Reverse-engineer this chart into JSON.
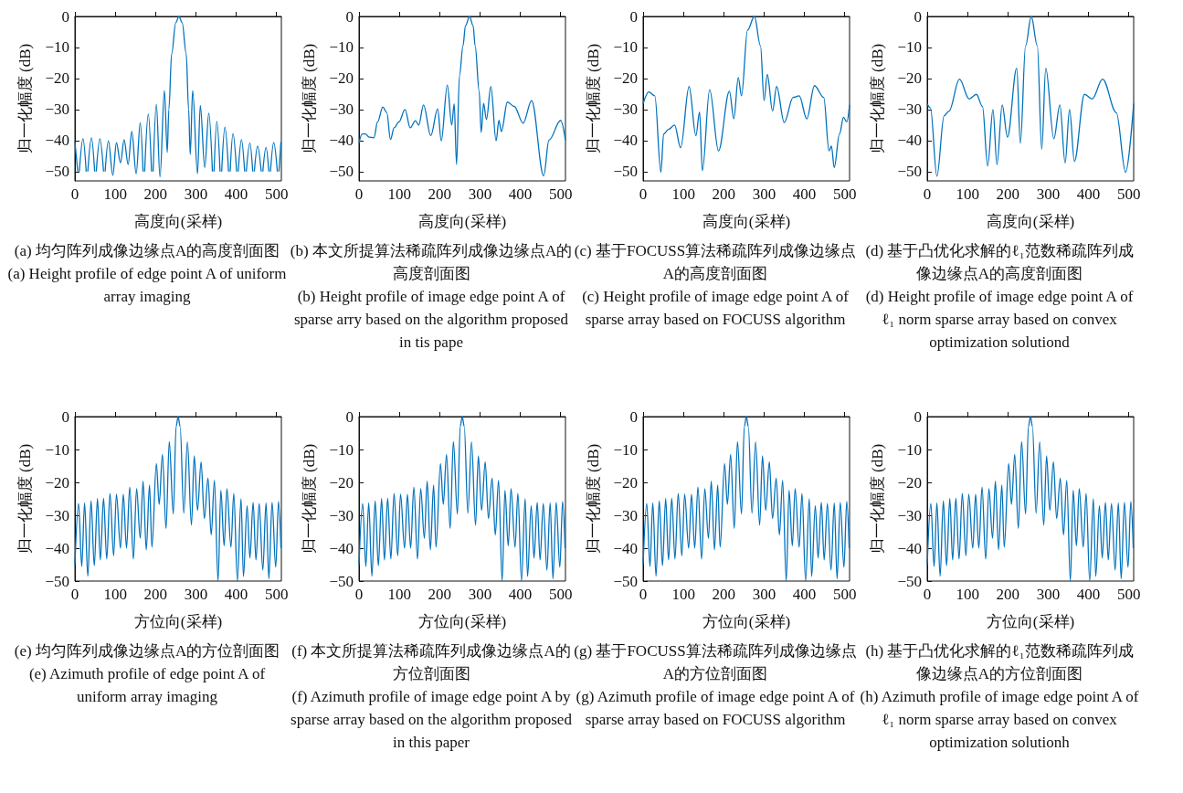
{
  "chart_data": [
    {
      "type": "line",
      "xlabel": "高度向(采样)",
      "ylabel": "归一化幅度 (dB)",
      "xlim": [
        0,
        512
      ],
      "xticks": [
        0,
        100,
        200,
        300,
        400,
        500
      ],
      "ylim": [
        -53,
        0
      ],
      "yticks": [
        0,
        -10,
        -20,
        -30,
        -40,
        -50
      ],
      "marker": "none",
      "annotations": [
        "(a) 均匀阵列成像边缘点A的高度剖面图",
        "(a) Height profile of edge point A of uniform array imaging"
      ],
      "series": [
        {
          "color": "#0072bd",
          "x": [
            0,
            7,
            9,
            11,
            20,
            28,
            30,
            32,
            41,
            49,
            51,
            53,
            62,
            71,
            73,
            75,
            83,
            94,
            103,
            113,
            122,
            132,
            141,
            152,
            162,
            169,
            171,
            173,
            182,
            190,
            192,
            194,
            202,
            211,
            222,
            229,
            233,
            240,
            250,
            258,
            266,
            276,
            282,
            286,
            292,
            304,
            311,
            322,
            332,
            341,
            343,
            345,
            352,
            360,
            362,
            364,
            372,
            381,
            383,
            385,
            392,
            401,
            403,
            405,
            413,
            421,
            423,
            425,
            434,
            441,
            443,
            445,
            453,
            462,
            464,
            466,
            474,
            481,
            483,
            485,
            493,
            502,
            504,
            506,
            511
          ],
          "values": [
            -40.4,
            -50,
            null,
            -50,
            -39.4,
            -50,
            null,
            -50,
            -39.1,
            -50,
            null,
            -50,
            -39.4,
            -50,
            null,
            -50,
            -40.1,
            -51.2,
            -40.7,
            -47.2,
            -39.7,
            -47.7,
            -37.1,
            -50.7,
            -34.3,
            -50,
            null,
            -50,
            -31.5,
            -50,
            null,
            -50,
            -28.3,
            -51.7,
            -23.9,
            -43.8,
            -30,
            -12,
            -2,
            0,
            -2,
            -12,
            -30,
            -44.5,
            -23.9,
            -50.7,
            -28.7,
            -48.7,
            -31.2,
            -50,
            null,
            -50,
            -33.8,
            -50,
            null,
            -50,
            -35.7,
            -50,
            null,
            -50,
            -37.7,
            -50,
            null,
            -50,
            -39.7,
            -50,
            null,
            -50,
            -40.8,
            -50,
            null,
            -50,
            -41.8,
            -50,
            null,
            -50,
            -42.2,
            -50,
            null,
            -50,
            -40.6,
            -50,
            null,
            -50,
            -40.4
          ]
        }
      ]
    },
    {
      "type": "line",
      "xlabel": "高度向(采样)",
      "ylabel": "归一化幅度 (dB)",
      "xlim": [
        0,
        512
      ],
      "xticks": [
        0,
        100,
        200,
        300,
        400,
        500
      ],
      "ylim": [
        -53,
        0
      ],
      "yticks": [
        0,
        -10,
        -20,
        -30,
        -40,
        -50
      ],
      "marker": "none",
      "annotations": [
        "(b) 本文所提算法稀疏阵列成像边缘点A的高度剖面图",
        "(b) Height profile of image edge point A of sparse arry based on the algorithm proposed in tis pape"
      ],
      "series": [
        {
          "color": "#0072bd",
          "x": [
            0,
            8,
            16,
            25,
            37,
            46,
            59,
            69,
            78,
            87,
            99,
            114,
            127,
            140,
            148,
            160,
            178,
            195,
            204,
            219,
            230,
            236,
            242,
            249,
            258,
            264,
            274,
            283,
            288,
            298,
            303,
            309,
            316,
            327,
            340,
            347,
            353,
            368,
            385,
            407,
            428,
            458,
            471,
            500,
            512
          ],
          "values": [
            -40.8,
            -37.9,
            -37.9,
            -38.9,
            -39.1,
            -34,
            -29.2,
            -31,
            -39.7,
            -35.9,
            -34,
            -30,
            -35.9,
            -33.6,
            -35,
            -28.5,
            -38.4,
            -29.8,
            -40.1,
            -22.1,
            -35,
            -28.2,
            -47.7,
            -19.2,
            -9.4,
            -3,
            0,
            -3,
            -9.4,
            -24.1,
            -37.4,
            -28,
            -33.2,
            -22.6,
            -40.1,
            -33.5,
            -37.1,
            -27.6,
            -29,
            -34.4,
            -27.1,
            -51.4,
            -39.9,
            -33.5,
            -39.9
          ]
        }
      ]
    },
    {
      "type": "line",
      "xlabel": "高度向(采样)",
      "ylabel": "归一化幅度 (dB)",
      "xlim": [
        0,
        512
      ],
      "xticks": [
        0,
        100,
        200,
        300,
        400,
        500
      ],
      "ylim": [
        -53,
        0
      ],
      "yticks": [
        0,
        -10,
        -20,
        -30,
        -40,
        -50
      ],
      "marker": "none",
      "annotations": [
        "(c) 基于FOCUSS算法稀疏阵列成像边缘点A的高度剖面图",
        "(c) Height profile of image edge point A of sparse array based on FOCUSS algorithm"
      ],
      "series": [
        {
          "color": "#0072bd",
          "x": [
            0,
            14,
            29,
            44,
            51,
            63,
            78,
            93,
            114,
            131,
            140,
            147,
            165,
            187,
            214,
            225,
            236,
            244,
            259,
            276,
            291,
            300,
            308,
            321,
            331,
            350,
            372,
            387,
            406,
            425,
            448,
            461,
            467,
            474,
            487,
            497,
            505,
            512
          ],
          "values": [
            -28.1,
            -24.3,
            -25.6,
            -50.2,
            -37.9,
            -36.4,
            -35,
            -42.3,
            -22.6,
            -38.4,
            -30.8,
            -49.7,
            -23.6,
            -43.3,
            -24.1,
            -33,
            -19.7,
            -25.6,
            -4.4,
            0,
            -9.4,
            -27.1,
            -18.7,
            -30.5,
            -22.6,
            -34.2,
            -26.1,
            -25.6,
            -33,
            -22.3,
            -26.1,
            -43.3,
            -41.8,
            -48.7,
            -37.9,
            -32.5,
            -34,
            -28.5
          ]
        }
      ]
    },
    {
      "type": "line",
      "xlabel": "高度向(采样)",
      "ylabel": "归一化幅度 (dB)",
      "xlim": [
        0,
        512
      ],
      "xticks": [
        0,
        100,
        200,
        300,
        400,
        500
      ],
      "ylim": [
        -53,
        0
      ],
      "yticks": [
        0,
        -10,
        -20,
        -30,
        -40,
        -50
      ],
      "marker": "none",
      "annotations": [
        "(d) 基于凸优化求解的ℓ₁范数稀疏阵列成像边缘点A的高度剖面图",
        "(d) Height profile of image edge point A of ℓ₁ norm sparse array based on convex optimization solutiond"
      ],
      "series": [
        {
          "color": "#0072bd",
          "x": [
            0,
            8,
            24,
            42,
            54,
            80,
            104,
            122,
            137,
            150,
            163,
            173,
            186,
            199,
            222,
            231,
            244,
            258,
            273,
            284,
            294,
            314,
            329,
            342,
            353,
            365,
            390,
            409,
            435,
            469,
            492,
            512
          ],
          "values": [
            -28.1,
            -29.5,
            -51.5,
            -32,
            -30.5,
            -20.2,
            -26.6,
            -25.1,
            -29,
            -48.2,
            -30,
            -47.7,
            -28.5,
            -38.9,
            -16.7,
            -40.9,
            -9.4,
            0,
            -9.4,
            -42.8,
            -16.7,
            -39.4,
            -28.5,
            -47.2,
            -30,
            -46.7,
            -25.1,
            -26.6,
            -20.2,
            -31,
            -50.2,
            -28.1
          ]
        }
      ]
    },
    {
      "type": "line",
      "xlabel": "方位向(采样)",
      "ylabel": "归一化幅度 (dB)",
      "xlim": [
        0,
        512
      ],
      "xticks": [
        0,
        100,
        200,
        300,
        400,
        500
      ],
      "ylim": [
        -50,
        0
      ],
      "yticks": [
        0,
        -10,
        -20,
        -30,
        -40,
        -50
      ],
      "marker": "none",
      "annotations": [
        "(e) 均匀阵列成像边缘点A的方位剖面图",
        "(e) Azimuth profile of edge point A of uniform array imaging"
      ],
      "series": [
        {
          "color": "#0072bd",
          "x": [
            0,
            9,
            17,
            24,
            32,
            40,
            48,
            56,
            63,
            71,
            79,
            87,
            96,
            103,
            113,
            120,
            128,
            136,
            145,
            153,
            162,
            169,
            177,
            185,
            191,
            202,
            209,
            217,
            226,
            234,
            244,
            251,
            256,
            261,
            270,
            279,
            289,
            296,
            304,
            313,
            321,
            330,
            338,
            346,
            355,
            362,
            370,
            377,
            387,
            394,
            403,
            412,
            418,
            427,
            434,
            442,
            449,
            457,
            466,
            474,
            481,
            489,
            498,
            505,
            511
          ],
          "values": [
            -45,
            -26.4,
            -45.6,
            -26.2,
            -48.5,
            -25.6,
            -45.3,
            -24.9,
            -43.6,
            -24.8,
            -43.3,
            -23.4,
            -42.3,
            -23.6,
            -40,
            -23.6,
            -40,
            -21.4,
            -43.3,
            -21.9,
            -37,
            -19.6,
            -40.5,
            -20.8,
            -39.7,
            -14.3,
            -26.7,
            -11.5,
            -34,
            -7.6,
            -29.6,
            -3,
            0,
            -3,
            -29.4,
            -7.7,
            -33,
            -11.9,
            -28.5,
            -13.8,
            -31,
            -18.7,
            -36,
            -19.4,
            -50,
            -22.4,
            -39.3,
            -21.9,
            -39.7,
            -23.4,
            -50,
            -25,
            -48.6,
            -27.1,
            -43,
            -26.1,
            -43.6,
            -26.4,
            -46.7,
            -26.2,
            -49.3,
            -26.1,
            -45.8,
            -25.8,
            -40
          ]
        }
      ]
    },
    {
      "type": "line",
      "xlabel": "方位向(采样)",
      "ylabel": "归一化幅度 (dB)",
      "xlim": [
        0,
        512
      ],
      "xticks": [
        0,
        100,
        200,
        300,
        400,
        500
      ],
      "ylim": [
        -50,
        0
      ],
      "yticks": [
        0,
        -10,
        -20,
        -30,
        -40,
        -50
      ],
      "marker": "none",
      "annotations": [
        "(f) 本文所提算法稀疏阵列成像边缘点A的方位剖面图",
        "(f) Azimuth profile of image edge point A by sparse array based on the algorithm proposed in this paper"
      ],
      "series": [
        {
          "color": "#0072bd",
          "x": [
            0,
            9,
            17,
            24,
            32,
            40,
            48,
            56,
            63,
            71,
            79,
            87,
            96,
            103,
            113,
            120,
            128,
            136,
            145,
            153,
            162,
            169,
            177,
            185,
            191,
            202,
            209,
            217,
            226,
            234,
            244,
            251,
            256,
            261,
            270,
            279,
            289,
            296,
            304,
            313,
            321,
            330,
            338,
            346,
            355,
            362,
            370,
            377,
            387,
            394,
            403,
            412,
            418,
            427,
            434,
            442,
            449,
            457,
            466,
            474,
            481,
            489,
            498,
            505,
            511
          ],
          "values": [
            -45,
            -26.4,
            -45.6,
            -26.2,
            -48.5,
            -25.6,
            -45.3,
            -24.9,
            -43.6,
            -24.8,
            -43.3,
            -23.4,
            -42.3,
            -23.6,
            -40,
            -23.6,
            -40,
            -21.4,
            -43.3,
            -21.9,
            -37,
            -19.6,
            -40.5,
            -20.8,
            -39.7,
            -14.3,
            -26.7,
            -11.5,
            -34,
            -7.6,
            -29.6,
            -3,
            0,
            -3,
            -29.4,
            -7.7,
            -33,
            -11.9,
            -28.5,
            -13.8,
            -31,
            -18.7,
            -36,
            -19.4,
            -50,
            -22.4,
            -39.3,
            -21.9,
            -39.7,
            -23.4,
            -50,
            -25,
            -48.6,
            -27.1,
            -43,
            -26.1,
            -43.6,
            -26.4,
            -46.7,
            -26.2,
            -49.3,
            -26.1,
            -45.8,
            -25.8,
            -40
          ]
        }
      ]
    },
    {
      "type": "line",
      "xlabel": "方位向(采样)",
      "ylabel": "归一化幅度 (dB)",
      "xlim": [
        0,
        512
      ],
      "xticks": [
        0,
        100,
        200,
        300,
        400,
        500
      ],
      "ylim": [
        -50,
        0
      ],
      "yticks": [
        0,
        -10,
        -20,
        -30,
        -40,
        -50
      ],
      "marker": "none",
      "annotations": [
        "(g) 基于FOCUSS算法稀疏阵列成像边缘点A的方位剖面图",
        "(g) Azimuth profile of image edge point A of sparse array based on FOCUSS algorithm"
      ],
      "series": [
        {
          "color": "#0072bd",
          "x": [
            0,
            9,
            17,
            24,
            32,
            40,
            48,
            56,
            63,
            71,
            79,
            87,
            96,
            103,
            113,
            120,
            128,
            136,
            145,
            153,
            162,
            169,
            177,
            185,
            191,
            202,
            209,
            217,
            226,
            234,
            244,
            251,
            256,
            261,
            270,
            279,
            289,
            296,
            304,
            313,
            321,
            330,
            338,
            346,
            355,
            362,
            370,
            377,
            387,
            394,
            403,
            412,
            418,
            427,
            434,
            442,
            449,
            457,
            466,
            474,
            481,
            489,
            498,
            505,
            511
          ],
          "values": [
            -45,
            -26.4,
            -45.6,
            -26.2,
            -48.5,
            -25.6,
            -45.3,
            -24.9,
            -43.6,
            -24.8,
            -43.3,
            -23.4,
            -42.3,
            -23.6,
            -40,
            -23.6,
            -40,
            -21.4,
            -43.3,
            -21.9,
            -37,
            -19.6,
            -40.5,
            -20.8,
            -39.7,
            -14.3,
            -26.7,
            -11.5,
            -34,
            -7.6,
            -29.6,
            -3,
            0,
            -3,
            -29.4,
            -7.7,
            -33,
            -11.9,
            -28.5,
            -13.8,
            -31,
            -18.7,
            -36,
            -19.4,
            -50,
            -22.4,
            -39.3,
            -21.9,
            -39.7,
            -23.4,
            -50,
            -25,
            -48.6,
            -27.1,
            -43,
            -26.1,
            -43.6,
            -26.4,
            -46.7,
            -26.2,
            -49.3,
            -26.1,
            -45.8,
            -25.8,
            -40
          ]
        }
      ]
    },
    {
      "type": "line",
      "xlabel": "方位向(采样)",
      "ylabel": "归一化幅度 (dB)",
      "xlim": [
        0,
        512
      ],
      "xticks": [
        0,
        100,
        200,
        300,
        400,
        500
      ],
      "ylim": [
        -50,
        0
      ],
      "yticks": [
        0,
        -10,
        -20,
        -30,
        -40,
        -50
      ],
      "marker": "none",
      "annotations": [
        "(h) 基于凸优化求解的ℓ₁范数稀疏阵列成像边缘点A的方位剖面图",
        "(h) Azimuth profile of image edge point A of ℓ₁ norm sparse array based on convex optimization solutionh"
      ],
      "series": [
        {
          "color": "#0072bd",
          "x": [
            0,
            9,
            17,
            24,
            32,
            40,
            48,
            56,
            63,
            71,
            79,
            87,
            96,
            103,
            113,
            120,
            128,
            136,
            145,
            153,
            162,
            169,
            177,
            185,
            191,
            202,
            209,
            217,
            226,
            234,
            244,
            251,
            256,
            261,
            270,
            279,
            289,
            296,
            304,
            313,
            321,
            330,
            338,
            346,
            355,
            362,
            370,
            377,
            387,
            394,
            403,
            412,
            418,
            427,
            434,
            442,
            449,
            457,
            466,
            474,
            481,
            489,
            498,
            505,
            511
          ],
          "values": [
            -45,
            -26.4,
            -45.6,
            -26.2,
            -48.5,
            -25.6,
            -45.3,
            -24.9,
            -43.6,
            -24.8,
            -43.3,
            -23.4,
            -42.3,
            -23.6,
            -40,
            -23.6,
            -40,
            -21.4,
            -43.3,
            -21.9,
            -37,
            -19.6,
            -40.5,
            -20.8,
            -39.7,
            -14.3,
            -26.7,
            -11.5,
            -34,
            -7.6,
            -29.6,
            -3,
            0,
            -3,
            -29.4,
            -7.7,
            -33,
            -11.9,
            -28.5,
            -13.8,
            -31,
            -18.7,
            -36,
            -19.4,
            -50,
            -22.4,
            -39.3,
            -21.9,
            -39.7,
            -23.4,
            -50,
            -25,
            -48.6,
            -27.1,
            -43,
            -26.1,
            -43.6,
            -26.4,
            -46.7,
            -26.2,
            -49.3,
            -26.1,
            -45.8,
            -25.8,
            -40
          ]
        }
      ]
    }
  ]
}
